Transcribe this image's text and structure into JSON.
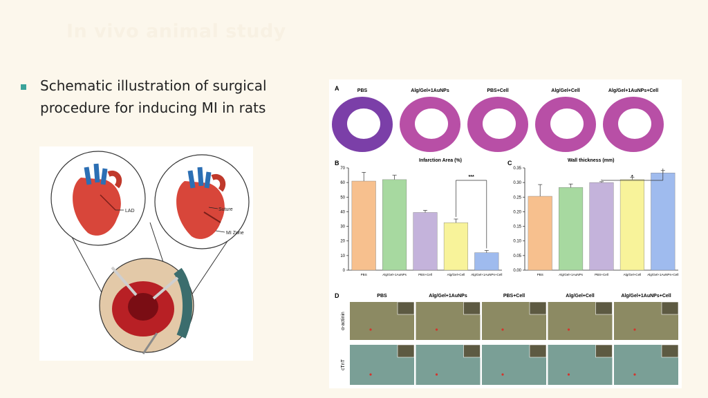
{
  "slide": {
    "title": "In vivo animal study",
    "bullet": "Schematic illustration of surgical procedure for inducing MI in rats"
  },
  "left_figure": {
    "labels": {
      "lad": "LAD",
      "suture": "Suture",
      "mi_zone": "MI Zone"
    }
  },
  "right_figure": {
    "panel_labels": {
      "a": "A",
      "b": "B",
      "c": "C",
      "d": "D"
    },
    "groups": [
      "PBS",
      "Alg/Gel+1AuNPs",
      "PBS+Cell",
      "Alg/Gel+Cell",
      "Alg/Gel+1AuNPs+Cell"
    ],
    "row_labels": [
      "α-actinin",
      "cTnT"
    ],
    "significance": {
      "b": "***",
      "c": "*"
    },
    "colors": [
      "#f7c08e",
      "#a7d9a0",
      "#c4b3db",
      "#f8f39a",
      "#9fbbee"
    ]
  },
  "chart_data": [
    {
      "type": "bar",
      "title": "Infarction Area (%)",
      "categories": [
        "PBS",
        "Alg/Gel+1AuNPs",
        "PBS+Cell",
        "Alg/Gel+Cell",
        "Alg/Gel+1AuNPs+Cell"
      ],
      "values": [
        61,
        62,
        39.5,
        32.5,
        12
      ],
      "errors": [
        6,
        3,
        1.5,
        2.5,
        1.5
      ],
      "ylim": [
        0,
        70
      ],
      "yticks": [
        0,
        10,
        20,
        30,
        40,
        50,
        60,
        70
      ]
    },
    {
      "type": "bar",
      "title": "Wall thickness (mm)",
      "categories": [
        "PBS",
        "Alg/Gel+1AuNPs",
        "PBS+Cell",
        "Alg/Gel+Cell",
        "Alg/Gel+1AuNPs+Cell"
      ],
      "values": [
        0.253,
        0.283,
        0.3,
        0.31,
        0.333
      ],
      "errors": [
        0.04,
        0.012,
        0.003,
        0.008,
        0.008
      ],
      "ylim": [
        0,
        0.35
      ],
      "yticks": [
        "0.00",
        "0.05",
        "0.10",
        "0.15",
        "0.20",
        "0.25",
        "0.30",
        "0.35"
      ]
    }
  ]
}
